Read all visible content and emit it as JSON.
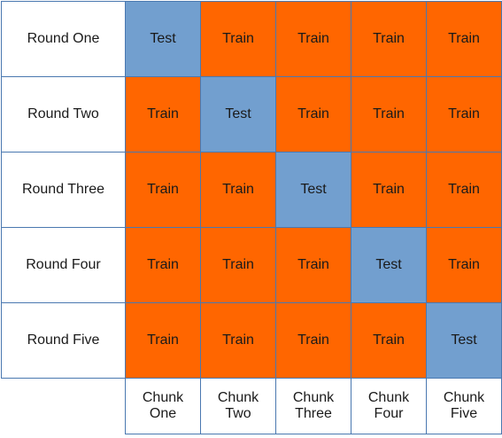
{
  "rows": [
    {
      "label": "Round One",
      "cells": [
        "Test",
        "Train",
        "Train",
        "Train",
        "Train"
      ]
    },
    {
      "label": "Round Two",
      "cells": [
        "Train",
        "Test",
        "Train",
        "Train",
        "Train"
      ]
    },
    {
      "label": "Round Three",
      "cells": [
        "Train",
        "Train",
        "Test",
        "Train",
        "Train"
      ]
    },
    {
      "label": "Round Four",
      "cells": [
        "Train",
        "Train",
        "Train",
        "Test",
        "Train"
      ]
    },
    {
      "label": "Round Five",
      "cells": [
        "Train",
        "Train",
        "Train",
        "Train",
        "Test"
      ]
    }
  ],
  "columns": [
    {
      "line1": "Chunk",
      "line2": "One"
    },
    {
      "line1": "Chunk",
      "line2": "Two"
    },
    {
      "line1": "Chunk",
      "line2": "Three"
    },
    {
      "line1": "Chunk",
      "line2": "Four"
    },
    {
      "line1": "Chunk",
      "line2": "Five"
    }
  ],
  "colors": {
    "Train": "#ff6600",
    "Test": "#729fcf",
    "border": "#4a78b0"
  }
}
